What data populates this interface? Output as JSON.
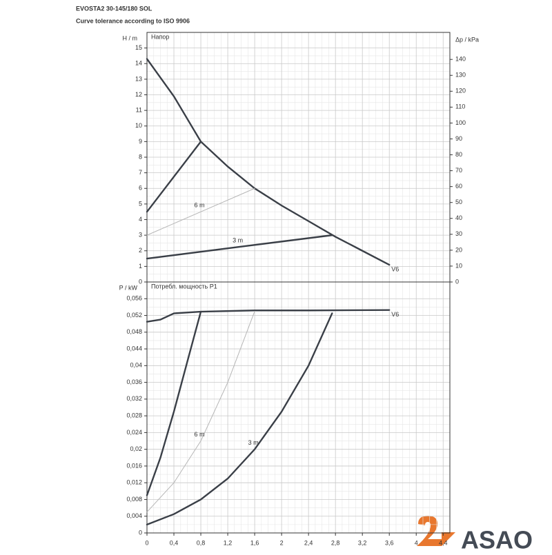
{
  "header": {
    "title": "EVOSTA2 30-145/180 SOL",
    "subtitle": "Curve tolerance according to ISO 9906"
  },
  "logo": "ASAO",
  "chart_data": [
    {
      "type": "line",
      "panel_title": "Напор",
      "ylabel": "H / m",
      "y2label": "Δp / kPa",
      "xlim": [
        0,
        4.5
      ],
      "xticks": [
        0,
        0.4,
        0.8,
        1.2,
        1.6,
        2,
        2.4,
        2.8,
        3.2,
        3.6,
        4,
        4.4
      ],
      "ylim": [
        0,
        16
      ],
      "yticks": [
        0,
        1,
        2,
        3,
        4,
        5,
        6,
        7,
        8,
        9,
        10,
        11,
        12,
        13,
        14,
        15
      ],
      "y2lim": [
        0,
        157
      ],
      "y2ticks": [
        0,
        10,
        20,
        30,
        40,
        50,
        60,
        70,
        80,
        90,
        100,
        110,
        120,
        130,
        140
      ],
      "grid": true,
      "series": [
        {
          "name": "V6",
          "color": "#3a3f47",
          "linewidth": 2.4,
          "x": [
            0,
            0.4,
            0.8,
            1.2,
            1.6,
            2.0,
            2.4,
            2.8,
            3.2,
            3.6
          ],
          "values": [
            14.3,
            11.9,
            9.0,
            7.4,
            6.0,
            4.9,
            3.9,
            2.9,
            2.0,
            1.1
          ]
        },
        {
          "color": "#3a3f47",
          "linewidth": 2.4,
          "x": [
            0,
            0.8
          ],
          "values": [
            4.5,
            9.0
          ]
        },
        {
          "name": "6 m",
          "color": "#b5b5b5",
          "linewidth": 1,
          "x": [
            0,
            0.8,
            1.6
          ],
          "values": [
            3.0,
            4.5,
            6.0
          ]
        },
        {
          "name": "3 m",
          "color": "#3a3f47",
          "linewidth": 2.4,
          "x": [
            0,
            1.37,
            2.75
          ],
          "values": [
            1.5,
            2.25,
            3.0
          ]
        }
      ]
    },
    {
      "type": "line",
      "panel_title": "Потребл. мощность P1",
      "ylabel": "P / kW",
      "xlim": [
        0,
        4.5
      ],
      "xticks": [
        0,
        {
          "value": 0.4,
          "label": "0,4"
        },
        {
          "value": 0.8,
          "label": "0,8"
        },
        {
          "value": 1.2,
          "label": "1,2"
        },
        {
          "value": 1.6,
          "label": "1,6"
        },
        2,
        {
          "value": 2.4,
          "label": "2,4"
        },
        {
          "value": 2.8,
          "label": "2,8"
        },
        {
          "value": 3.2,
          "label": "3,2"
        },
        {
          "value": 3.6,
          "label": "3,6"
        },
        4,
        {
          "value": 4.4,
          "label": "4,4"
        }
      ],
      "ylim": [
        0,
        0.06
      ],
      "yticks": [
        0,
        {
          "value": 0.004,
          "label": "0,004"
        },
        {
          "value": 0.008,
          "label": "0,008"
        },
        {
          "value": 0.012,
          "label": "0,012"
        },
        {
          "value": 0.016,
          "label": "0,016"
        },
        {
          "value": 0.02,
          "label": "0,02"
        },
        {
          "value": 0.024,
          "label": "0,024"
        },
        {
          "value": 0.028,
          "label": "0,028"
        },
        {
          "value": 0.032,
          "label": "0,032"
        },
        {
          "value": 0.036,
          "label": "0,036"
        },
        {
          "value": 0.04,
          "label": "0,04"
        },
        {
          "value": 0.044,
          "label": "0,044"
        },
        {
          "value": 0.048,
          "label": "0,048"
        },
        {
          "value": 0.052,
          "label": "0,052"
        },
        {
          "value": 0.056,
          "label": "0,056"
        }
      ],
      "grid": true,
      "series": [
        {
          "name": "V6",
          "color": "#3a3f47",
          "linewidth": 2.4,
          "x": [
            0,
            0.2,
            0.4,
            0.8,
            1.6,
            2.4,
            3.6
          ],
          "values": [
            0.0505,
            0.051,
            0.0525,
            0.0529,
            0.0532,
            0.0532,
            0.0533
          ]
        },
        {
          "color": "#3a3f47",
          "linewidth": 2.4,
          "x": [
            0,
            0.2,
            0.4,
            0.6,
            0.8
          ],
          "values": [
            0.009,
            0.018,
            0.029,
            0.041,
            0.0529
          ]
        },
        {
          "name": "6 m",
          "color": "#b5b5b5",
          "linewidth": 1,
          "x": [
            0,
            0.4,
            0.8,
            1.2,
            1.6
          ],
          "values": [
            0.005,
            0.012,
            0.022,
            0.036,
            0.053
          ]
        },
        {
          "name": "3 m",
          "color": "#3a3f47",
          "linewidth": 2.4,
          "x": [
            0,
            0.4,
            0.8,
            1.2,
            1.6,
            2.0,
            2.4,
            2.75
          ],
          "values": [
            0.002,
            0.0045,
            0.008,
            0.013,
            0.02,
            0.029,
            0.04,
            0.0525
          ]
        }
      ]
    }
  ]
}
